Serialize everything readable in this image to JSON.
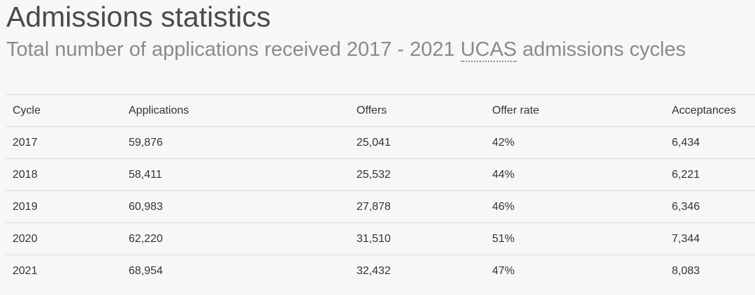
{
  "header": {
    "title": "Admissions statistics",
    "subtitle_prefix": "Total number of applications received 2017 - 2021 ",
    "subtitle_abbr": "UCAS",
    "subtitle_suffix": " admissions cycles"
  },
  "table": {
    "columns": [
      "Cycle",
      "Applications",
      "Offers",
      "Offer rate",
      "Acceptances"
    ],
    "rows": [
      [
        "2017",
        "59,876",
        "25,041",
        "42%",
        "6,434"
      ],
      [
        "2018",
        "58,411",
        "25,532",
        "44%",
        "6,221"
      ],
      [
        "2019",
        "60,983",
        "27,878",
        "46%",
        "6,346"
      ],
      [
        "2020",
        "62,220",
        "31,510",
        "51%",
        "7,344"
      ],
      [
        "2021",
        "68,954",
        "32,432",
        "47%",
        "8,083"
      ]
    ]
  },
  "colors": {
    "background": "#f7f7f7",
    "title": "#4a4a4a",
    "subtitle": "#8a8a8a",
    "text": "#333333",
    "rule": "#dcdcdc"
  }
}
